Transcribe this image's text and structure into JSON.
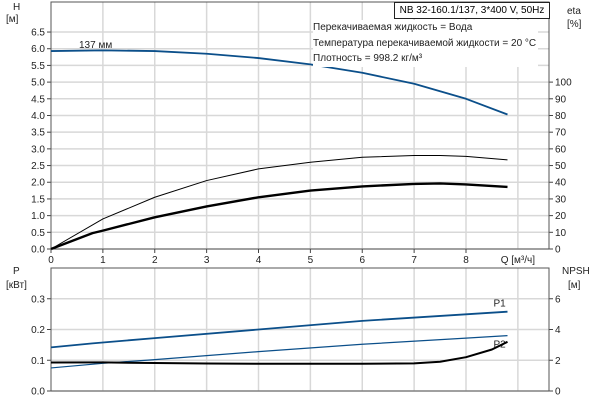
{
  "header": {
    "model": "NB 32-160.1/137, 3*400 V, 50Hz",
    "info": [
      "Перекачиваемая жидкость = Вода",
      "Температура перекачиваемой жидкости = 20 °C",
      "Плотность = 998.2 кг/м³"
    ]
  },
  "colors": {
    "blue": "#0b4f8a",
    "black": "#000000",
    "grid": "#d8d8d8"
  },
  "chart_data": [
    {
      "type": "line",
      "xlabel": "Q [м³/ч]",
      "ylabel": [
        "H",
        "[м]"
      ],
      "y2label": [
        "eta",
        "[%]"
      ],
      "xlim": [
        0,
        9.6
      ],
      "ylim": [
        0,
        7.4
      ],
      "y2lim": [
        0,
        148
      ],
      "grid": true,
      "xticks": [
        "0",
        "1",
        "2",
        "3",
        "4",
        "5",
        "6",
        "7",
        "8"
      ],
      "yticks": [
        "0.0",
        "0.5",
        "1.0",
        "1.5",
        "2.0",
        "2.5",
        "3.0",
        "3.5",
        "4.0",
        "4.5",
        "5.0",
        "5.5",
        "6.0",
        "6.5"
      ],
      "y2ticks": [
        "0",
        "10",
        "20",
        "30",
        "40",
        "50",
        "60",
        "70",
        "80",
        "90",
        "100"
      ],
      "annotations": [
        "137 мм"
      ],
      "series": [
        {
          "axis": "left",
          "color": "#0b4f8a",
          "x": [
            0,
            1,
            2,
            3,
            4,
            5,
            6,
            7,
            8,
            8.8
          ],
          "y": [
            5.93,
            5.95,
            5.93,
            5.85,
            5.72,
            5.53,
            5.28,
            4.95,
            4.5,
            4.03
          ]
        },
        {
          "axis": "right",
          "color": "#000000",
          "x": [
            0,
            1,
            2,
            3,
            4,
            5,
            6,
            7,
            7.5,
            8,
            8.8
          ],
          "y": [
            0,
            18,
            31,
            41,
            48,
            52,
            55,
            56,
            56,
            55.5,
            53.4
          ]
        },
        {
          "axis": "right",
          "color": "#000000",
          "x": [
            0,
            0.8,
            1,
            2,
            3,
            4,
            5,
            6,
            7,
            7.5,
            8,
            8.8
          ],
          "y": [
            0,
            9.5,
            11,
            19,
            25.5,
            31,
            35,
            37.5,
            39,
            39.3,
            38.7,
            37.2
          ]
        }
      ]
    },
    {
      "type": "line",
      "ylabel": [
        "P",
        "[кВт]"
      ],
      "y2label": [
        "NPSH",
        "[м]"
      ],
      "xlim": [
        0,
        9.6
      ],
      "ylim": [
        0,
        0.4
      ],
      "y2lim": [
        0,
        8
      ],
      "grid": true,
      "yticks": [
        "0.0",
        "0.1",
        "0.2",
        "0.3"
      ],
      "y2ticks": [
        "0",
        "2",
        "4",
        "6"
      ],
      "series": [
        {
          "name": "P1",
          "axis": "left",
          "color": "#0b4f8a",
          "x": [
            0,
            0.8,
            2,
            4,
            6,
            8.8
          ],
          "y": [
            0.142,
            0.155,
            0.172,
            0.2,
            0.228,
            0.258
          ]
        },
        {
          "name": "P2",
          "axis": "left",
          "color": "#0b4f8a",
          "x": [
            0,
            1,
            2,
            4,
            6,
            8,
            8.8
          ],
          "y": [
            0.075,
            0.09,
            0.102,
            0.128,
            0.152,
            0.172,
            0.18
          ]
        },
        {
          "axis": "right",
          "color": "#000000",
          "x": [
            0,
            1,
            2,
            3,
            4,
            5,
            6,
            7,
            7.5,
            8,
            8.5,
            8.8
          ],
          "y": [
            1.85,
            1.86,
            1.82,
            1.79,
            1.77,
            1.77,
            1.77,
            1.8,
            1.9,
            2.2,
            2.7,
            3.2
          ]
        }
      ]
    }
  ]
}
